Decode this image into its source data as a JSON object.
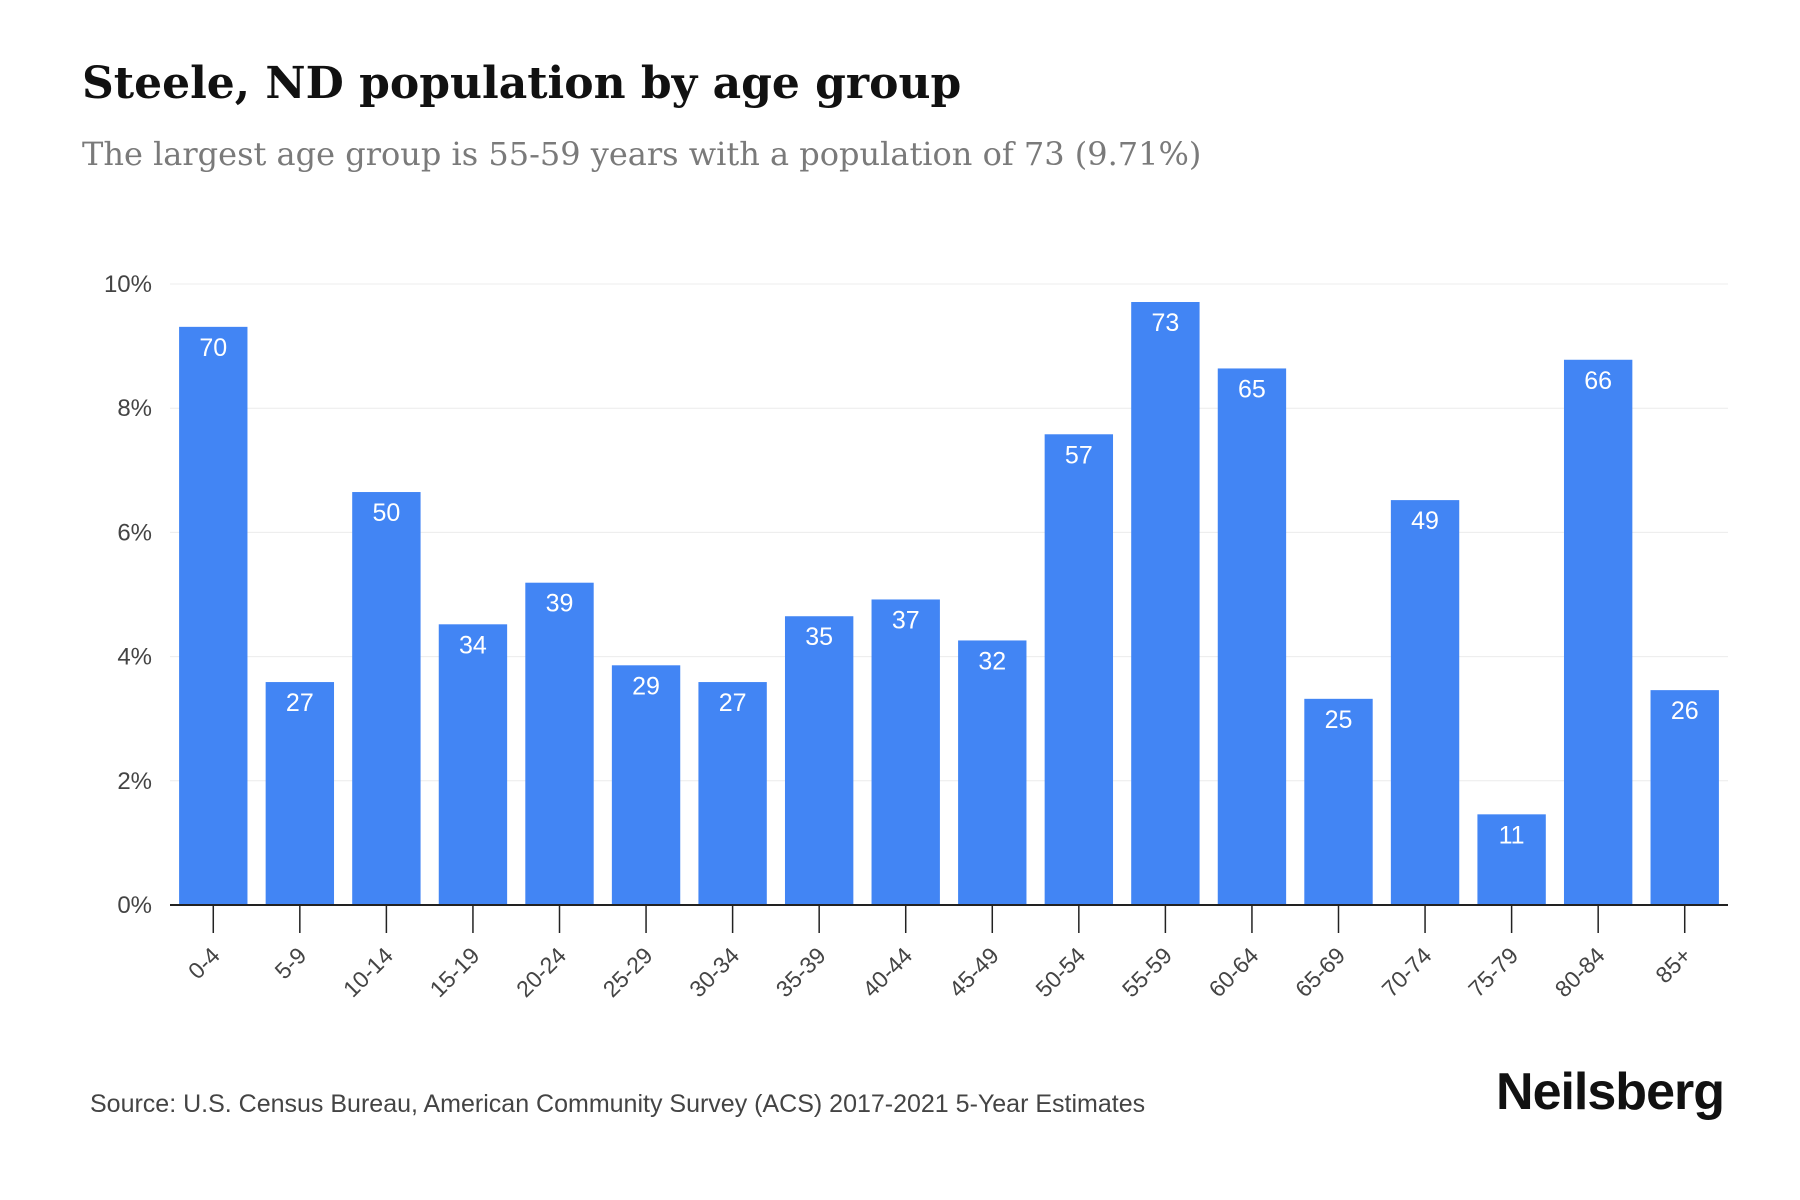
{
  "title": "Steele, ND population by age group",
  "subtitle": "The largest age group is 55-59 years with a population of 73 (9.71%)",
  "source": "Source: U.S. Census Bureau, American Community Survey (ACS) 2017-2021 5-Year Estimates",
  "brand": "Neilsberg",
  "colors": {
    "bar": "#4285f4",
    "label": "#ffffff",
    "grid": "#ececec",
    "axis": "#222222",
    "tick_text": "#444444"
  },
  "chart_data": {
    "type": "bar",
    "categories": [
      "0-4",
      "5-9",
      "10-14",
      "15-19",
      "20-24",
      "25-29",
      "30-34",
      "35-39",
      "40-44",
      "45-49",
      "50-54",
      "55-59",
      "60-64",
      "65-69",
      "70-74",
      "75-79",
      "80-84",
      "85+"
    ],
    "values": [
      9.31,
      3.59,
      6.65,
      4.52,
      5.19,
      3.86,
      3.59,
      4.65,
      4.92,
      4.26,
      7.58,
      9.71,
      8.64,
      3.32,
      6.52,
      1.46,
      8.78,
      3.46
    ],
    "data_labels": [
      "70",
      "27",
      "50",
      "34",
      "39",
      "29",
      "27",
      "35",
      "37",
      "32",
      "57",
      "73",
      "65",
      "25",
      "49",
      "11",
      "66",
      "26"
    ],
    "y_ticks": [
      "0%",
      "2%",
      "4%",
      "6%",
      "8%",
      "10%"
    ],
    "ylim": [
      0,
      10
    ],
    "grid": true,
    "xlabel": "",
    "ylabel": ""
  }
}
